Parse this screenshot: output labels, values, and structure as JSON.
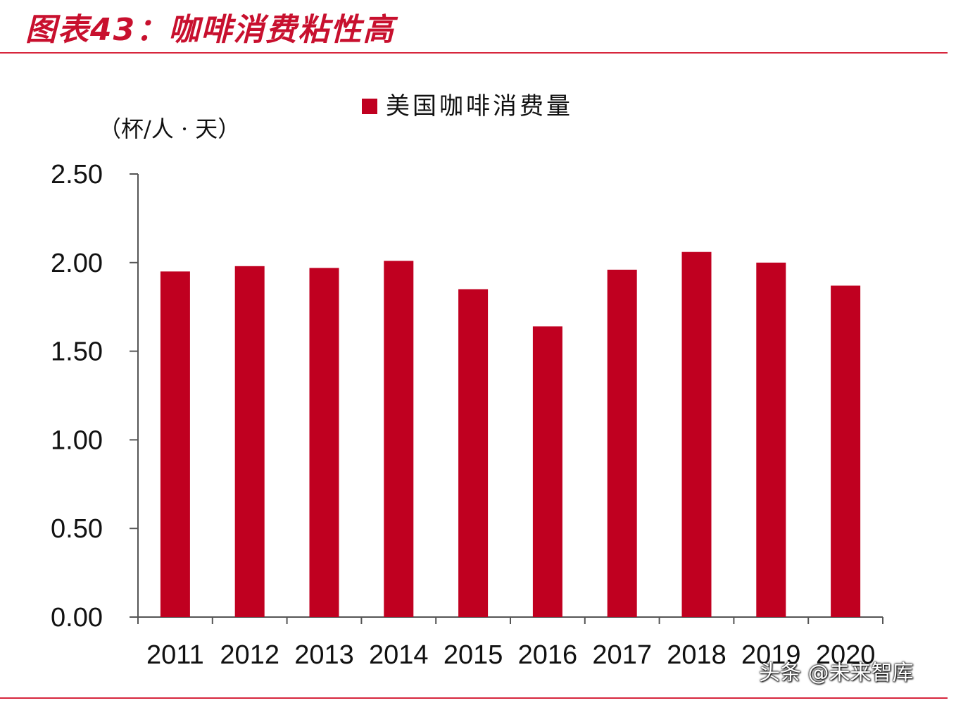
{
  "title": "图表43：咖啡消费粘性高",
  "watermark": "头条 @未来智库",
  "colors": {
    "accent": "#c8102e",
    "bar": "#c00020",
    "axis": "#555555",
    "text": "#111111"
  },
  "chart_data": {
    "type": "bar",
    "unit_label": "（杯/人 · 天）",
    "categories": [
      "2011",
      "2012",
      "2013",
      "2014",
      "2015",
      "2016",
      "2017",
      "2018",
      "2019",
      "2020"
    ],
    "series": [
      {
        "name": "美国咖啡消费量",
        "values": [
          1.95,
          1.98,
          1.97,
          2.01,
          1.85,
          1.64,
          1.96,
          2.06,
          2.0,
          1.87
        ]
      }
    ],
    "yticks": [
      "0.00",
      "0.50",
      "1.00",
      "1.50",
      "2.00",
      "2.50"
    ],
    "ylim": [
      0,
      2.5
    ],
    "grid": false,
    "legend_position": "top-center"
  }
}
